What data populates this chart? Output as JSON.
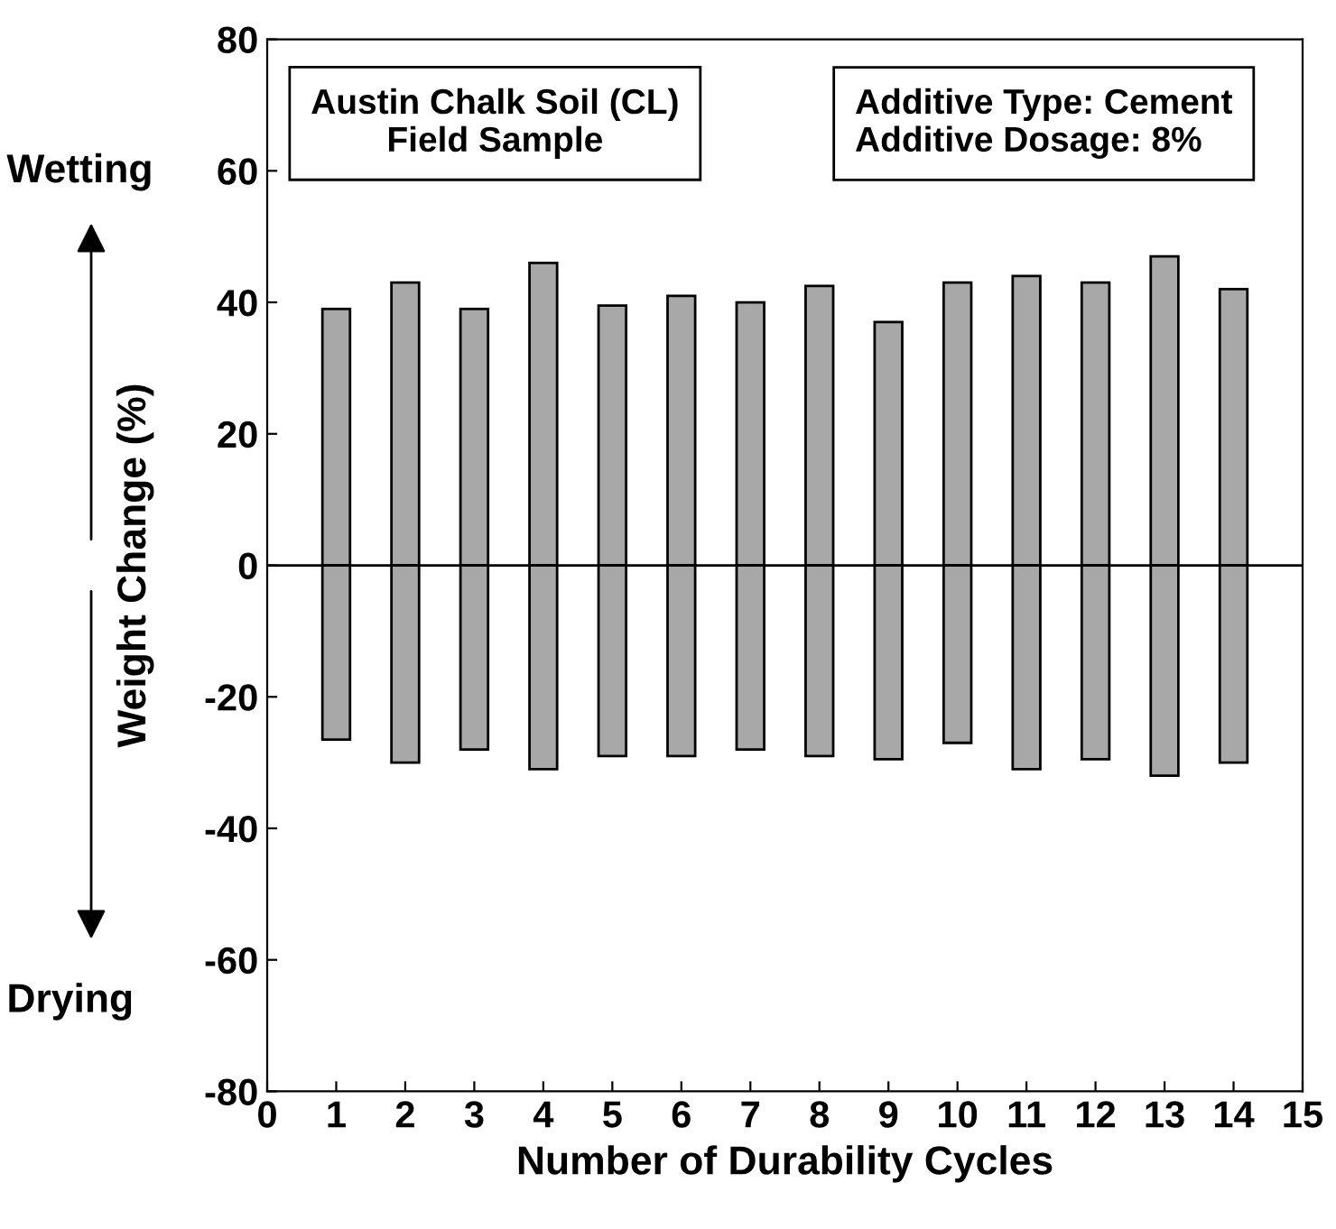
{
  "chart_data": {
    "type": "bar",
    "xlabel": "Number of Durability Cycles",
    "ylabel": "Weight Change (%)",
    "x": [
      1,
      2,
      3,
      4,
      5,
      6,
      7,
      8,
      9,
      10,
      11,
      12,
      13,
      14
    ],
    "stacked": true,
    "series": [
      {
        "color": "#a8a8a8",
        "values": [
          39,
          43,
          39,
          46,
          39.5,
          41,
          40,
          42.5,
          37,
          43,
          44,
          43,
          47,
          42
        ]
      },
      {
        "color": "#a8a8a8",
        "values": [
          -26.5,
          -30,
          -28,
          -31,
          -29,
          -29,
          -28,
          -29,
          -29.5,
          -27,
          -31,
          -29.5,
          -32,
          -30
        ]
      }
    ],
    "xlim": [
      0,
      15
    ],
    "xticks": [
      0,
      1,
      2,
      3,
      4,
      5,
      6,
      7,
      8,
      9,
      10,
      11,
      12,
      13,
      14,
      15
    ],
    "ylim": [
      -80,
      80
    ],
    "yticks": [
      -80,
      -60,
      -40,
      -20,
      0,
      20,
      40,
      60,
      80
    ],
    "ref_lines": [
      {
        "axis": "y",
        "value": 0,
        "color": "#000000"
      }
    ],
    "annotations": [
      "Wetting",
      "Drying",
      "Austin Chalk Soil (CL)\nField Sample",
      "Additive Type: Cement\nAdditive Dosage: 8%"
    ],
    "grid": false,
    "legend": false
  }
}
